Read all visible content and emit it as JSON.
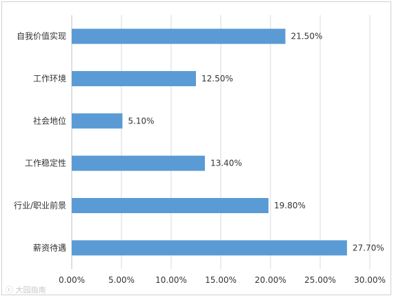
{
  "chart_data": {
    "type": "bar",
    "orientation": "horizontal",
    "categories": [
      "自我价值实现",
      "工作环境",
      "社会地位",
      "工作稳定性",
      "行业/职业前景",
      "薪资待遇"
    ],
    "values": [
      21.5,
      12.5,
      5.1,
      13.4,
      19.8,
      27.7
    ],
    "data_labels": [
      "21.50%",
      "12.50%",
      "5.10%",
      "13.40%",
      "19.80%",
      "27.70%"
    ],
    "xlim": [
      0,
      30
    ],
    "x_ticks": [
      0,
      5,
      10,
      15,
      20,
      25,
      30
    ],
    "x_tick_labels": [
      "0.00%",
      "5.00%",
      "10.00%",
      "15.00%",
      "20.00%",
      "25.00%",
      "30.00%"
    ],
    "title": "",
    "xlabel": "",
    "ylabel": "",
    "grid": true,
    "legend": "none",
    "bar_color": "#5b9bd5",
    "grid_color": "#d9d9d9"
  },
  "watermark": {
    "text": "大园指南",
    "icon": "logo-icon"
  }
}
